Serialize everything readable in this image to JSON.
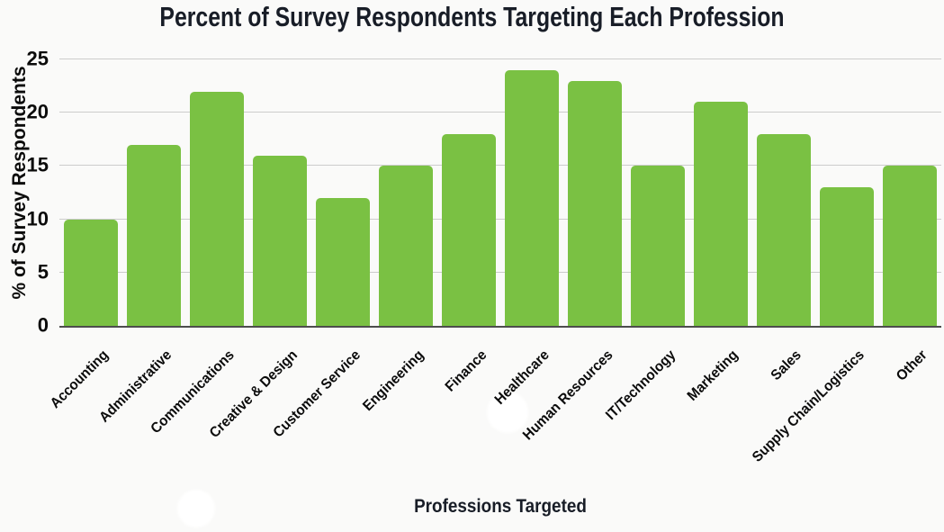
{
  "chart_data": {
    "type": "bar",
    "title": "Percent of Survey Respondents Targeting Each Profession",
    "xlabel": "Professions Targeted",
    "ylabel": "% of Survey Respondents",
    "categories": [
      "Accounting",
      "Administrative",
      "Communications",
      "Creative & Design",
      "Customer Service",
      "Engineering",
      "Finance",
      "Healthcare",
      "Human Resources",
      "IT/Technology",
      "Marketing",
      "Sales",
      "Supply Chain/Logistics",
      "Other"
    ],
    "values": [
      10,
      17,
      22,
      16,
      12,
      15,
      18,
      24,
      23,
      15,
      21,
      18,
      13,
      15
    ],
    "ylim": [
      0,
      25
    ],
    "yticks": [
      0,
      5,
      10,
      15,
      20,
      25
    ],
    "grid": true,
    "legend": "none",
    "bar_color": "#7ac143",
    "gridline_color": "#cccccc",
    "axis_line_color": "#4d4d4d",
    "background_color": "#fafaf9",
    "text_color": "#0b0b0b",
    "title_color": "#181d27"
  }
}
